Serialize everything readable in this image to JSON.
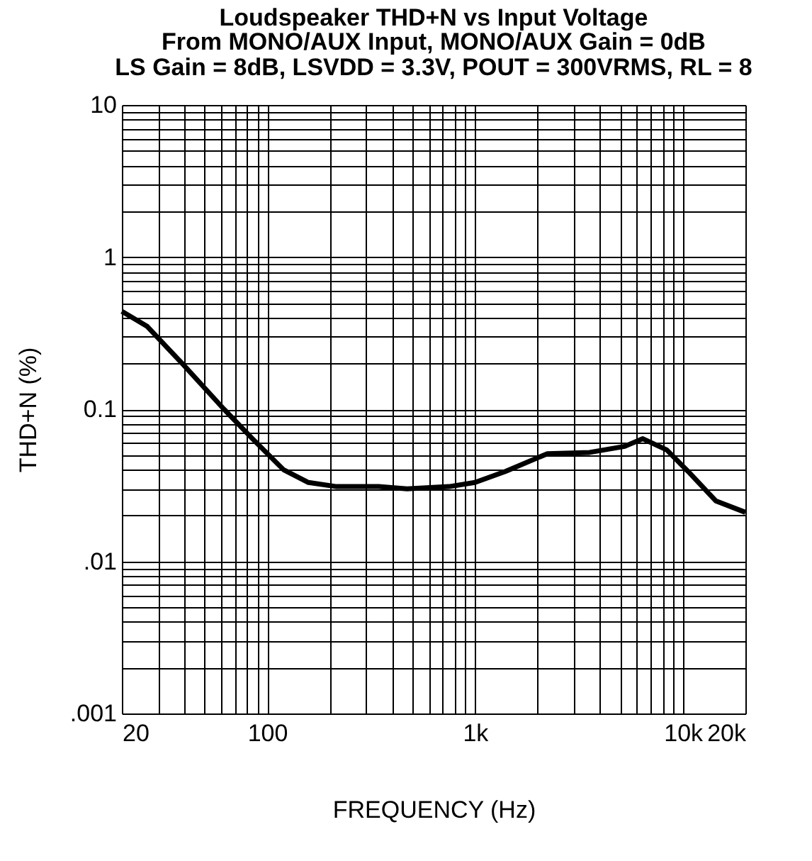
{
  "chart_data": {
    "type": "line",
    "title": "Loudspeaker THD+N vs Input Voltage",
    "subtitle": "From MONO/AUX Input, MONO/AUX Gain = 0dB\nLS Gain = 8dB, LSVDD = 3.3V, POUT = 300VRMS, RL = 8",
    "xlabel": "FREQUENCY (Hz)",
    "ylabel": "THD+N (%)",
    "log": "xy",
    "grid": true,
    "marker": "none",
    "line_style": "solid",
    "x": [
      20,
      26.5,
      39,
      62,
      85,
      120,
      158,
      216,
      344,
      471,
      750,
      1000,
      1400,
      2230,
      3560,
      5250,
      6420,
      8370,
      10600,
      14400,
      20000
    ],
    "series": [
      {
        "color": "#000000",
        "values": [
          0.44,
          0.35,
          0.2,
          0.1,
          0.064,
          0.04,
          0.033,
          0.031,
          0.031,
          0.03,
          0.031,
          0.033,
          0.039,
          0.051,
          0.052,
          0.057,
          0.064,
          0.054,
          0.039,
          0.025,
          0.021
        ]
      }
    ],
    "xlim": [
      20,
      20000
    ],
    "ylim": [
      0.001,
      10
    ],
    "xticks": [
      20,
      {
        "value": 30,
        "label": null
      },
      {
        "value": 40,
        "label": null
      },
      {
        "value": 50,
        "label": null
      },
      {
        "value": 60,
        "label": null
      },
      {
        "value": 70,
        "label": null
      },
      {
        "value": 80,
        "label": null
      },
      {
        "value": 90,
        "label": null
      },
      100,
      {
        "value": 200,
        "label": null
      },
      {
        "value": 300,
        "label": null
      },
      {
        "value": 400,
        "label": null
      },
      {
        "value": 500,
        "label": null
      },
      {
        "value": 600,
        "label": null
      },
      {
        "value": 700,
        "label": null
      },
      {
        "value": 800,
        "label": null
      },
      {
        "value": 900,
        "label": null
      },
      {
        "value": 1000,
        "label": "1k"
      },
      {
        "value": 2000,
        "label": null
      },
      {
        "value": 3000,
        "label": null
      },
      {
        "value": 4000,
        "label": null
      },
      {
        "value": 5000,
        "label": null
      },
      {
        "value": 6000,
        "label": null
      },
      {
        "value": 7000,
        "label": null
      },
      {
        "value": 8000,
        "label": null
      },
      {
        "value": 9000,
        "label": null
      },
      {
        "value": 10000,
        "label": "10k"
      },
      {
        "value": 20000,
        "label": "20k"
      }
    ],
    "yticks": [
      {
        "value": 0.001,
        "label": ".001"
      },
      {
        "value": 0.002,
        "label": null
      },
      {
        "value": 0.003,
        "label": null
      },
      {
        "value": 0.004,
        "label": null
      },
      {
        "value": 0.005,
        "label": null
      },
      {
        "value": 0.006,
        "label": null
      },
      {
        "value": 0.007,
        "label": null
      },
      {
        "value": 0.008,
        "label": null
      },
      {
        "value": 0.009,
        "label": null
      },
      {
        "value": 0.01,
        "label": ".01"
      },
      {
        "value": 0.02,
        "label": null
      },
      {
        "value": 0.03,
        "label": null
      },
      {
        "value": 0.04,
        "label": null
      },
      {
        "value": 0.05,
        "label": null
      },
      {
        "value": 0.06,
        "label": null
      },
      {
        "value": 0.07,
        "label": null
      },
      {
        "value": 0.08,
        "label": null
      },
      {
        "value": 0.09,
        "label": null
      },
      0.1,
      {
        "value": 0.2,
        "label": null
      },
      {
        "value": 0.3,
        "label": null
      },
      {
        "value": 0.4,
        "label": null
      },
      {
        "value": 0.5,
        "label": null
      },
      {
        "value": 0.6,
        "label": null
      },
      {
        "value": 0.7,
        "label": null
      },
      {
        "value": 0.8,
        "label": null
      },
      {
        "value": 0.9,
        "label": null
      },
      1,
      {
        "value": 2,
        "label": null
      },
      {
        "value": 3,
        "label": null
      },
      {
        "value": 4,
        "label": null
      },
      {
        "value": 5,
        "label": null
      },
      {
        "value": 6,
        "label": null
      },
      {
        "value": 7,
        "label": null
      },
      {
        "value": 8,
        "label": null
      },
      {
        "value": 9,
        "label": null
      },
      10
    ]
  }
}
